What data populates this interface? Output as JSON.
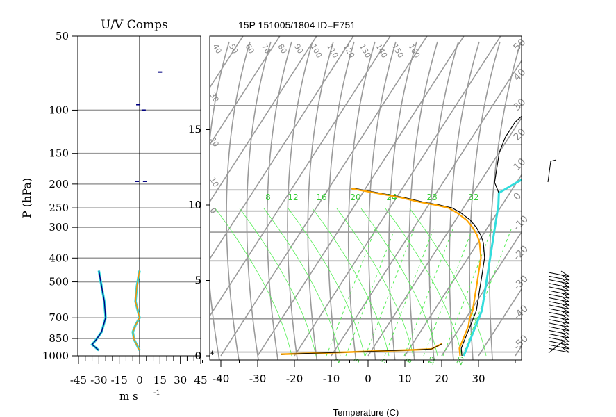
{
  "title": "15P 151005/1804 ID=E751",
  "uv_panel": {
    "title": "U/V Comps",
    "ylabel": "P (hPa)",
    "xlabel": "m s",
    "xlabel_exp": "-1",
    "pressure_ticks": [
      "50",
      "100",
      "150",
      "200",
      "250",
      "300",
      "400",
      "500",
      "700",
      "850",
      "1000"
    ],
    "x_ticks": [
      "-45",
      "-30",
      "-15",
      "0",
      "15",
      "30",
      "45"
    ]
  },
  "skewt": {
    "xlabel": "Temperature (C)",
    "temp_ticks": [
      "-40",
      "-30",
      "-20",
      "-10",
      "0",
      "10",
      "20",
      "30"
    ],
    "height_ticks": [
      "0",
      "5",
      "10",
      "15"
    ],
    "mixing_labels": [
      "8",
      "12",
      "16",
      "20",
      "24",
      "28",
      "32"
    ],
    "bottom_labels": [
      "2",
      "3",
      "5",
      "8",
      "12",
      "20"
    ],
    "theta_labels": [
      "40",
      "50",
      "60",
      "70",
      "80",
      "90",
      "100",
      "110",
      "120",
      "130",
      "140",
      "150",
      "160"
    ],
    "theta_left": [
      "30",
      "20",
      "10",
      "0"
    ],
    "thetae_right": [
      "50",
      "40",
      "30",
      "20",
      "10",
      "0",
      "-10",
      "-20",
      "-30",
      "-40",
      "-50"
    ],
    "surface_marker": "*"
  },
  "chart_data": [
    {
      "type": "line",
      "name": "U/V Comps",
      "series": [
        {
          "name": "U",
          "color": "#000080",
          "points": [
            [
              -30,
              450
            ],
            [
              -28,
              520
            ],
            [
              -26,
              600
            ],
            [
              -25,
              700
            ],
            [
              -28,
              800
            ],
            [
              -32,
              860
            ],
            [
              -35,
              900
            ],
            [
              -30,
              950
            ]
          ]
        },
        {
          "name": "V",
          "color": "#ff8c00",
          "points": [
            [
              0,
              450
            ],
            [
              -2,
              520
            ],
            [
              -3,
              600
            ],
            [
              0,
              700
            ],
            [
              -3,
              750
            ],
            [
              -5,
              800
            ],
            [
              -4,
              860
            ],
            [
              0,
              950
            ]
          ]
        }
      ],
      "upper_points": [
        [
          15,
          70
        ],
        [
          -1,
          95
        ],
        [
          3,
          100
        ],
        [
          -2,
          195
        ],
        [
          4,
          195
        ]
      ],
      "ylim": [
        1000,
        50
      ],
      "xlim": [
        -45,
        45
      ]
    },
    {
      "type": "line",
      "name": "Skew-T",
      "series": [
        {
          "name": "temperature",
          "color": "#000000",
          "points": [
            [
              25.5,
              0
            ],
            [
              24,
              0.5
            ],
            [
              23.5,
              1
            ],
            [
              23,
              1.5
            ],
            [
              22.5,
              2
            ],
            [
              22,
              2.5
            ],
            [
              21.5,
              3
            ],
            [
              20.5,
              3.5
            ],
            [
              19.5,
              4
            ],
            [
              18.5,
              4.5
            ],
            [
              17.5,
              5
            ],
            [
              16.5,
              5.5
            ],
            [
              15.5,
              6
            ],
            [
              14.5,
              6.5
            ],
            [
              13,
              7
            ],
            [
              11.5,
              7.5
            ],
            [
              9.5,
              8
            ],
            [
              7,
              8.5
            ],
            [
              4,
              9
            ],
            [
              0,
              9.5
            ],
            [
              -3,
              9.8
            ],
            [
              -7,
              10
            ],
            [
              -12,
              10.2
            ],
            [
              -18,
              10.5
            ],
            [
              -23,
              10.7
            ],
            [
              -28,
              10.9
            ],
            [
              -33,
              11.1
            ]
          ]
        },
        {
          "name": "dewpoint",
          "color": "#ffa500",
          "points": [
            [
              25,
              0
            ],
            [
              23.5,
              0.5
            ],
            [
              23,
              1
            ],
            [
              22.5,
              1.5
            ],
            [
              22,
              2
            ],
            [
              21,
              2.5
            ],
            [
              20.5,
              3
            ],
            [
              19.5,
              3.5
            ],
            [
              18.5,
              4
            ],
            [
              17.5,
              4.5
            ],
            [
              16.5,
              5
            ],
            [
              15.5,
              5.5
            ],
            [
              14.5,
              6
            ],
            [
              13.5,
              6.5
            ],
            [
              12,
              7
            ],
            [
              10.5,
              7.5
            ],
            [
              8.5,
              8
            ],
            [
              6,
              8.5
            ],
            [
              3,
              9
            ],
            [
              -1,
              9.5
            ],
            [
              -4,
              9.8
            ],
            [
              -8,
              10
            ],
            [
              -13,
              10.2
            ],
            [
              -19,
              10.5
            ],
            [
              -24,
              10.7
            ],
            [
              -29,
              10.9
            ],
            [
              -34,
              11.1
            ]
          ]
        },
        {
          "name": "parcel",
          "color": "#33dddd",
          "points": [
            [
              26,
              0
            ],
            [
              25,
              1
            ],
            [
              24,
              2
            ],
            [
              23,
              3
            ],
            [
              21,
              4
            ],
            [
              19,
              5
            ],
            [
              17,
              6
            ],
            [
              15,
              7
            ],
            [
              13,
              8
            ],
            [
              11,
              9
            ],
            [
              9,
              10
            ],
            [
              7,
              10.8
            ],
            [
              10,
              11.5
            ],
            [
              15,
              12.5
            ],
            [
              20,
              13.5
            ],
            [
              25,
              14.5
            ],
            [
              30,
              15.5
            ],
            [
              36,
              16.5
            ],
            [
              42,
              17.5
            ],
            [
              50,
              18.5
            ],
            [
              58,
              19.4
            ]
          ]
        },
        {
          "name": "upper_temperature",
          "color": "#000000",
          "points": [
            [
              7,
              10.8
            ],
            [
              4,
              11.5
            ],
            [
              2,
              12.5
            ],
            [
              0,
              13.5
            ],
            [
              -1,
              14.5
            ],
            [
              -1,
              15.5
            ],
            [
              0,
              16
            ],
            [
              2,
              16.5
            ],
            [
              5,
              17
            ],
            [
              8,
              17.5
            ],
            [
              12,
              18
            ],
            [
              16,
              18.5
            ],
            [
              20,
              19
            ],
            [
              24,
              19.5
            ],
            [
              26,
              20
            ]
          ]
        }
      ],
      "surface_trace": [
        [
          -24,
          0.1
        ],
        [
          -18,
          0.15
        ],
        [
          -12,
          0.2
        ],
        [
          -6,
          0.25
        ],
        [
          0,
          0.3
        ],
        [
          6,
          0.35
        ],
        [
          12,
          0.4
        ],
        [
          16,
          0.45
        ],
        [
          18,
          0.8
        ]
      ],
      "xlim": [
        -45,
        40
      ],
      "ylim": [
        0,
        20
      ]
    }
  ]
}
